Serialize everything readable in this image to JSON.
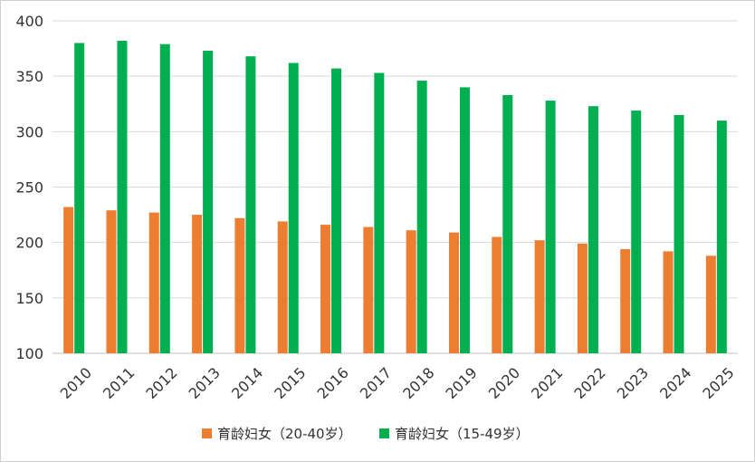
{
  "chart_data": {
    "type": "bar",
    "categories": [
      "2010",
      "2011",
      "2012",
      "2013",
      "2014",
      "2015",
      "2016",
      "2017",
      "2018",
      "2019",
      "2020",
      "2021",
      "2022",
      "2023",
      "2024",
      "2025"
    ],
    "series": [
      {
        "name": "育龄妇女（20-40岁）",
        "color": "#ED7D31",
        "values": [
          232,
          229,
          227,
          225,
          222,
          219,
          216,
          214,
          211,
          209,
          205,
          202,
          199,
          194,
          192,
          188
        ]
      },
      {
        "name": "育龄妇女（15-49岁）",
        "color": "#00B050",
        "values": [
          380,
          382,
          379,
          373,
          368,
          362,
          357,
          353,
          346,
          340,
          333,
          328,
          323,
          319,
          315,
          310
        ]
      }
    ],
    "yticks": [
      100,
      150,
      200,
      250,
      300,
      350,
      400
    ],
    "ylim": [
      100,
      400
    ],
    "grid": true,
    "legend_position": "bottom"
  }
}
